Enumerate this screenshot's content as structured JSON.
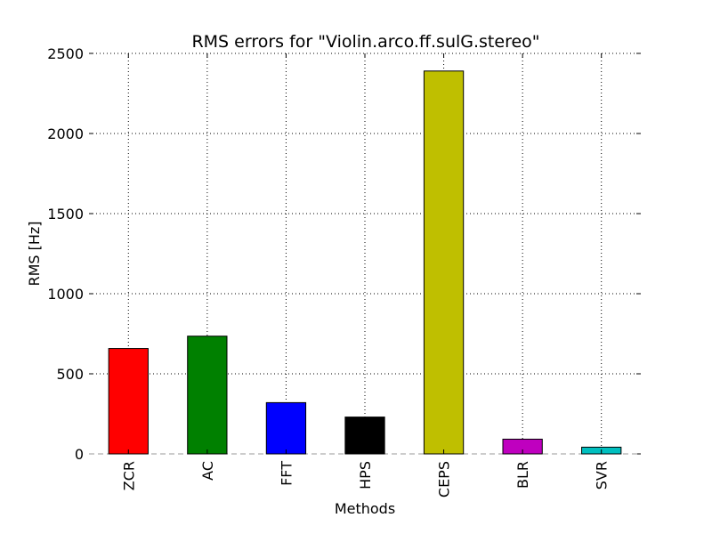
{
  "chart_data": {
    "type": "bar",
    "title": "RMS errors for \"Violin.arco.ff.sulG.stereo\"",
    "xlabel": "Methods",
    "ylabel": "RMS [Hz]",
    "categories": [
      "ZCR",
      "AC",
      "FFT",
      "HPS",
      "CEPS",
      "BLR",
      "SVR"
    ],
    "values": [
      658,
      735,
      320,
      230,
      2390,
      92,
      42
    ],
    "colors": [
      "#ff0000",
      "#008000",
      "#0000ff",
      "#000000",
      "#bfbf00",
      "#bf00bf",
      "#00bfbf"
    ],
    "ylim": [
      0,
      2500
    ],
    "yticks": [
      "0",
      "500",
      "1000",
      "1500",
      "2000",
      "2500"
    ],
    "grid": true,
    "grid_style": "dotted",
    "tick_rotation_x": "vertical",
    "zero_line": "dashed"
  }
}
